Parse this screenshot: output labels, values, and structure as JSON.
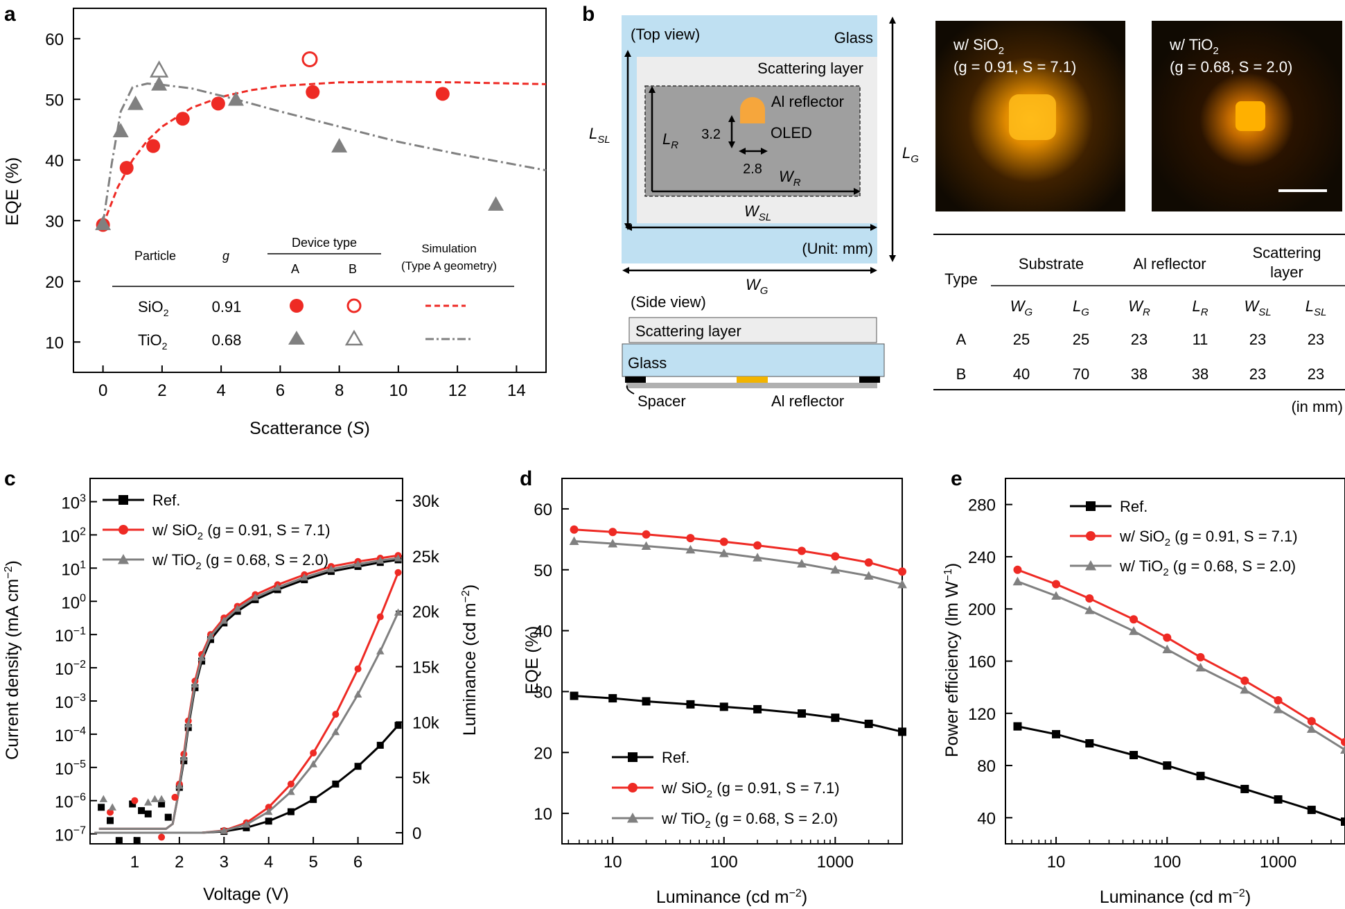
{
  "colors": {
    "red": "#ee2a24",
    "grey": "#808080",
    "black": "#000000",
    "glass": "#bfe0f2",
    "scatter": "#ededed",
    "reflector": "#9f9f9f",
    "oled": "#f6a63c"
  },
  "chart_data": [
    {
      "id": "a",
      "type": "scatter",
      "panel_label": "a",
      "xlabel_main": "Scatterance (",
      "xlabel_var": "S",
      "xlabel_end": ")",
      "ylabel": "EQE (%)",
      "xlim": [
        -1,
        15
      ],
      "ylim": [
        5,
        65
      ],
      "xticks": [
        0,
        2,
        4,
        6,
        8,
        10,
        12,
        14
      ],
      "yticks": [
        10,
        20,
        30,
        40,
        50,
        60
      ],
      "series": [
        {
          "name": "SiO2 Type A",
          "marker": "circle",
          "filled": true,
          "color": "red",
          "x": [
            0,
            0.8,
            1.7,
            2.7,
            3.9,
            7.1,
            11.5
          ],
          "y": [
            29.3,
            38.7,
            42.3,
            46.8,
            49.3,
            51.2,
            50.9
          ]
        },
        {
          "name": "SiO2 Type B",
          "marker": "circle",
          "filled": false,
          "color": "red",
          "x": [
            7.0
          ],
          "y": [
            56.6
          ]
        },
        {
          "name": "TiO2 Type A",
          "marker": "triangle",
          "filled": true,
          "color": "grey",
          "x": [
            0,
            0.6,
            1.1,
            1.9,
            4.5,
            8.0,
            13.3
          ],
          "y": [
            29.5,
            44.8,
            49.3,
            52.5,
            50.0,
            42.3,
            32.7
          ]
        },
        {
          "name": "TiO2 Type B",
          "marker": "triangle",
          "filled": false,
          "color": "grey",
          "x": [
            1.9
          ],
          "y": [
            54.8
          ]
        },
        {
          "name": "SiO2 simulation",
          "line": "dashed",
          "color": "red",
          "x": [
            0,
            0.5,
            1,
            1.5,
            2,
            3,
            4,
            5,
            6,
            8,
            10,
            12,
            15
          ],
          "y": [
            29.3,
            35.5,
            40.0,
            43.2,
            45.5,
            48.6,
            50.4,
            51.5,
            52.2,
            52.8,
            52.9,
            52.8,
            52.5
          ]
        },
        {
          "name": "TiO2 simulation",
          "line": "dashdot",
          "color": "grey",
          "x": [
            0,
            0.3,
            0.6,
            1,
            1.5,
            2,
            3,
            4.5,
            6,
            8,
            10,
            12,
            15
          ],
          "y": [
            29.5,
            39.5,
            48.0,
            52.0,
            52.6,
            52.4,
            51.8,
            50.0,
            48.0,
            45.5,
            43.0,
            41.0,
            38.3
          ]
        }
      ],
      "legend": {
        "col_particle": "Particle",
        "col_g": "g",
        "col_device": "Device type",
        "col_a": "A",
        "col_b": "B",
        "col_sim_1": "Simulation",
        "col_sim_2": "(Type A geometry)",
        "row1_main": "SiO",
        "row1_sub": "2",
        "row1_g": "0.91",
        "row2_main": "TiO",
        "row2_sub": "2",
        "row2_g": "0.68"
      }
    },
    {
      "id": "c",
      "type": "line",
      "panel_label": "c",
      "xlabel": "Voltage (V)",
      "ylabel_left": "Current density (mA cm",
      "ylabel_left_sup": "−2",
      "ylabel_left_end": ")",
      "ylabel_right": "Luminance (cd m",
      "ylabel_right_sup": "−2",
      "ylabel_right_end": ")",
      "xlim": [
        0,
        7
      ],
      "xticks": [
        1,
        2,
        3,
        4,
        5,
        6
      ],
      "ylim_left_log10": [
        -7.3,
        3.7
      ],
      "yticks_left_exp": [
        -7,
        -6,
        -5,
        -4,
        -3,
        -2,
        -1,
        0,
        1,
        2,
        3
      ],
      "ylim_right": [
        -1000,
        32000
      ],
      "yticks_right": [
        0,
        5000,
        10000,
        15000,
        20000,
        25000,
        30000
      ],
      "yticks_right_labels": [
        "0",
        "5k",
        "10k",
        "15k",
        "20k",
        "25k",
        "30k"
      ],
      "current_density": [
        {
          "name": "Ref.",
          "color": "black",
          "marker": "square",
          "x": [
            0.2,
            1.0,
            1.5,
            1.7,
            1.85,
            1.95,
            2.0,
            2.1,
            2.2,
            2.35,
            2.5,
            2.7,
            3.0,
            3.3,
            3.7,
            4.2,
            4.8,
            5.4,
            6.0,
            6.5,
            6.9
          ],
          "log10_y": [
            -6.85,
            -6.85,
            -6.85,
            -6.85,
            -6.7,
            -6.0,
            -5.6,
            -4.8,
            -3.8,
            -2.6,
            -1.8,
            -1.15,
            -0.65,
            -0.3,
            0.05,
            0.35,
            0.65,
            0.9,
            1.05,
            1.17,
            1.25
          ]
        },
        {
          "name": "w/ SiO2",
          "color": "red",
          "marker": "circle",
          "x": [
            0.2,
            1.0,
            1.5,
            1.7,
            1.85,
            1.95,
            2.0,
            2.1,
            2.2,
            2.35,
            2.5,
            2.7,
            3.0,
            3.3,
            3.7,
            4.2,
            4.8,
            5.4,
            6.0,
            6.5,
            6.9
          ],
          "log10_y": [
            -6.85,
            -6.85,
            -6.85,
            -6.85,
            -6.7,
            -6.0,
            -5.5,
            -4.6,
            -3.6,
            -2.4,
            -1.6,
            -1.0,
            -0.5,
            -0.15,
            0.2,
            0.5,
            0.8,
            1.05,
            1.2,
            1.3,
            1.38
          ]
        },
        {
          "name": "w/ TiO2",
          "color": "grey",
          "marker": "triangle",
          "x": [
            0.2,
            1.0,
            1.5,
            1.7,
            1.85,
            1.95,
            2.0,
            2.1,
            2.2,
            2.35,
            2.5,
            2.7,
            3.0,
            3.3,
            3.7,
            4.2,
            4.8,
            5.4,
            6.0,
            6.5,
            6.9
          ],
          "log10_y": [
            -6.85,
            -6.85,
            -6.85,
            -6.85,
            -6.7,
            -6.0,
            -5.55,
            -4.7,
            -3.7,
            -2.5,
            -1.7,
            -1.05,
            -0.58,
            -0.22,
            0.12,
            0.42,
            0.72,
            0.97,
            1.12,
            1.23,
            1.3
          ]
        }
      ],
      "luminance": [
        {
          "name": "Ref.",
          "color": "black",
          "marker": "square",
          "x": [
            0.1,
            2.5,
            3.0,
            3.5,
            4.0,
            4.5,
            5.0,
            5.5,
            6.0,
            6.5,
            6.9
          ],
          "y": [
            0,
            0,
            120,
            450,
            1050,
            1900,
            3000,
            4400,
            6000,
            7900,
            9700
          ]
        },
        {
          "name": "w/ SiO2",
          "color": "red",
          "marker": "circle",
          "x": [
            0.1,
            2.5,
            3.0,
            3.5,
            4.0,
            4.5,
            5.0,
            5.5,
            6.0,
            6.5,
            6.9
          ],
          "y": [
            0,
            0,
            200,
            900,
            2300,
            4400,
            7200,
            10700,
            14800,
            19500,
            23500
          ]
        },
        {
          "name": "w/ TiO2",
          "color": "grey",
          "marker": "triangle",
          "x": [
            0.1,
            2.5,
            3.0,
            3.5,
            4.0,
            4.5,
            5.0,
            5.5,
            6.0,
            6.5,
            6.9
          ],
          "y": [
            0,
            0,
            180,
            750,
            1900,
            3700,
            6200,
            9100,
            12500,
            16400,
            19900
          ]
        }
      ],
      "noise_points": [
        {
          "color": "black",
          "marker": "square",
          "x": [
            0.25,
            0.45,
            0.65,
            0.95,
            1.05,
            1.15,
            1.3,
            1.6,
            1.75
          ],
          "log10_y": [
            -6.2,
            -6.6,
            -7.2,
            -6.1,
            -7.2,
            -6.3,
            -6.4,
            -6.1,
            -6.5
          ]
        },
        {
          "color": "red",
          "marker": "circle",
          "x": [
            0.45,
            1.0,
            1.6,
            1.9
          ],
          "log10_y": [
            -6.35,
            -6.0,
            -7.1,
            -5.9
          ]
        },
        {
          "color": "grey",
          "marker": "triangle",
          "x": [
            0.3,
            0.5,
            1.3,
            1.45,
            1.6
          ],
          "log10_y": [
            -5.95,
            -6.2,
            -6.05,
            -5.95,
            -5.95
          ]
        }
      ],
      "legend": [
        {
          "label": "Ref.",
          "color": "black",
          "marker": "square",
          "params": ""
        },
        {
          "label": "w/ SiO",
          "sub": "2",
          "color": "red",
          "marker": "circle",
          "params": "(g = 0.91, S = 7.1)"
        },
        {
          "label": "w/ TiO",
          "sub": "2",
          "color": "grey",
          "marker": "triangle",
          "params": "(g = 0.68, S = 2.0)"
        }
      ]
    },
    {
      "id": "d",
      "type": "line",
      "panel_label": "d",
      "xscale": "log",
      "xlabel": "Luminance (cd m",
      "xlabel_sup": "−2",
      "xlabel_end": ")",
      "ylabel": "EQE (%)",
      "xlim": [
        3.5,
        4000
      ],
      "xticks": [
        10,
        100,
        1000
      ],
      "xtick_labels": [
        "10",
        "100",
        "1000"
      ],
      "ylim": [
        5,
        65
      ],
      "yticks": [
        10,
        20,
        30,
        40,
        50,
        60
      ],
      "series": [
        {
          "name": "Ref.",
          "color": "black",
          "marker": "square",
          "x": [
            4.5,
            10,
            20,
            50,
            100,
            200,
            500,
            1000,
            2000,
            4000
          ],
          "y": [
            29.3,
            28.9,
            28.4,
            27.9,
            27.5,
            27.1,
            26.4,
            25.7,
            24.7,
            23.4
          ]
        },
        {
          "name": "w/ SiO2",
          "color": "red",
          "marker": "circle",
          "x": [
            4.5,
            10,
            20,
            50,
            100,
            200,
            500,
            1000,
            2000,
            4000
          ],
          "y": [
            56.6,
            56.2,
            55.8,
            55.2,
            54.6,
            54.0,
            53.1,
            52.2,
            51.2,
            49.7
          ]
        },
        {
          "name": "w/ TiO2",
          "color": "grey",
          "marker": "triangle",
          "x": [
            4.5,
            10,
            20,
            50,
            100,
            200,
            500,
            1000,
            2000,
            4000
          ],
          "y": [
            54.7,
            54.3,
            53.9,
            53.3,
            52.7,
            52.0,
            51.0,
            50.0,
            49.0,
            47.6
          ]
        }
      ],
      "legend": [
        {
          "label": "Ref.",
          "color": "black",
          "marker": "square",
          "params": ""
        },
        {
          "label": "w/ SiO",
          "sub": "2",
          "color": "red",
          "marker": "circle",
          "params": "(g = 0.91, S = 7.1)"
        },
        {
          "label": "w/ TiO",
          "sub": "2",
          "color": "grey",
          "marker": "triangle",
          "params": "(g = 0.68, S = 2.0)"
        }
      ]
    },
    {
      "id": "e",
      "type": "line",
      "panel_label": "e",
      "xscale": "log",
      "xlabel": "Luminance (cd m",
      "xlabel_sup": "−2",
      "xlabel_end": ")",
      "ylabel": "Power efficiency (lm W",
      "ylabel_sup": "−1",
      "ylabel_end": ")",
      "xlim": [
        3.5,
        4000
      ],
      "xticks": [
        10,
        100,
        1000
      ],
      "xtick_labels": [
        "10",
        "100",
        "1000"
      ],
      "ylim": [
        20,
        300
      ],
      "yticks": [
        40,
        80,
        120,
        160,
        200,
        240,
        280
      ],
      "series": [
        {
          "name": "Ref.",
          "color": "black",
          "marker": "square",
          "x": [
            4.5,
            10,
            20,
            50,
            100,
            200,
            500,
            1000,
            2000,
            4000
          ],
          "y": [
            110,
            104,
            97,
            88,
            80,
            72,
            62,
            54,
            46,
            37
          ]
        },
        {
          "name": "w/ SiO2",
          "color": "red",
          "marker": "circle",
          "x": [
            4.5,
            10,
            20,
            50,
            100,
            200,
            500,
            1000,
            2000,
            4000
          ],
          "y": [
            230,
            219,
            208,
            192,
            178,
            163,
            145,
            130,
            114,
            98
          ]
        },
        {
          "name": "w/ TiO2",
          "color": "grey",
          "marker": "triangle",
          "x": [
            4.5,
            10,
            20,
            50,
            100,
            200,
            500,
            1000,
            2000,
            4000
          ],
          "y": [
            221,
            210,
            199,
            183,
            169,
            155,
            138,
            123,
            108,
            92
          ]
        }
      ],
      "legend": [
        {
          "label": "Ref.",
          "color": "black",
          "marker": "square",
          "params": ""
        },
        {
          "label": "w/ SiO",
          "sub": "2",
          "color": "red",
          "marker": "circle",
          "params": "(g = 0.91, S = 7.1)"
        },
        {
          "label": "w/ TiO",
          "sub": "2",
          "color": "grey",
          "marker": "triangle",
          "params": "(g = 0.68, S = 2.0)"
        }
      ]
    }
  ],
  "panel_b": {
    "label": "b",
    "top_view": "(Top view)",
    "glass": "Glass",
    "scattering_layer": "Scattering layer",
    "al_reflector": "Al reflector",
    "oled": "OLED",
    "dim_h": "3.2",
    "dim_w": "2.8",
    "unit": "(Unit: mm)",
    "side_view": "(Side view)",
    "side_scatter": "Scattering layer",
    "side_glass": "Glass",
    "spacer": "Spacer",
    "side_reflector": "Al reflector",
    "photo1_l1": "w/ SiO",
    "photo1_sub": "2",
    "photo1_l2": "(g = 0.91, S = 7.1)",
    "photo2_l1": "w/ TiO",
    "photo2_sub": "2",
    "photo2_l2": "(g = 0.68, S = 2.0)",
    "table": {
      "head_type": "Type",
      "head_substrate": "Substrate",
      "head_reflector": "Al reflector",
      "head_scatter_1": "Scattering",
      "head_scatter_2": "layer",
      "rows": [
        {
          "type": "A",
          "values": [
            "25",
            "25",
            "23",
            "11",
            "23",
            "23"
          ]
        },
        {
          "type": "B",
          "values": [
            "40",
            "70",
            "38",
            "38",
            "23",
            "23"
          ]
        }
      ],
      "unit": "(in mm)"
    }
  }
}
